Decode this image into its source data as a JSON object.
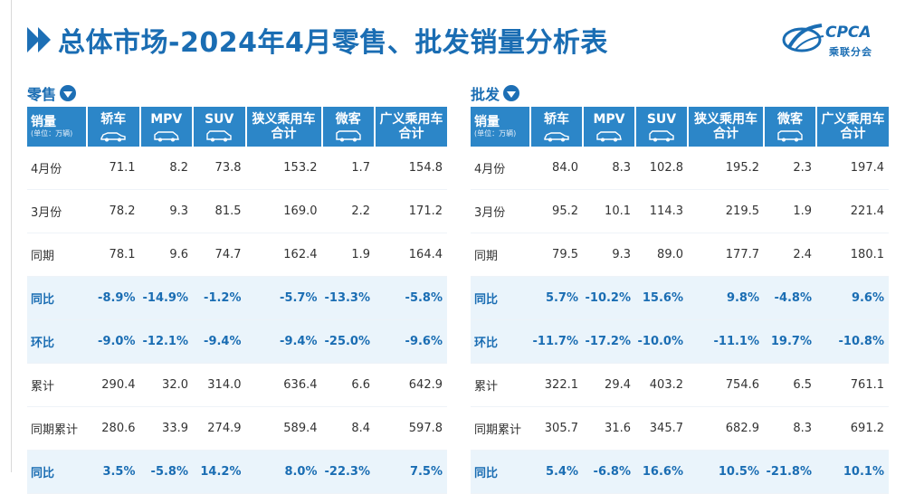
{
  "title": "总体市场-2024年4月零售、批发销量分析表",
  "logo": {
    "text": "CPCA",
    "sub": "乘联分会"
  },
  "header": {
    "col0_label": "销量",
    "col0_unit": "(单位：万辆)",
    "sedan": "轿车",
    "mpv": "MPV",
    "suv": "SUV",
    "narrow_line1": "狭义乘用车",
    "narrow_line2": "合计",
    "mini": "微客",
    "broad_line1": "广义乘用车",
    "broad_line2": "合计"
  },
  "retail": {
    "title": "零售",
    "rows": [
      {
        "label": "4月份",
        "sedan": "71.1",
        "mpv": "8.2",
        "suv": "73.8",
        "narrow": "153.2",
        "mini": "1.7",
        "broad": "154.8"
      },
      {
        "label": "3月份",
        "sedan": "78.2",
        "mpv": "9.3",
        "suv": "81.5",
        "narrow": "169.0",
        "mini": "2.2",
        "broad": "171.2"
      },
      {
        "label": "同期",
        "sedan": "78.1",
        "mpv": "9.6",
        "suv": "74.7",
        "narrow": "162.4",
        "mini": "1.9",
        "broad": "164.4"
      },
      {
        "label": "同比",
        "sedan": "-8.9%",
        "mpv": "-14.9%",
        "suv": "-1.2%",
        "narrow": "-5.7%",
        "mini": "-13.3%",
        "broad": "-5.8%"
      },
      {
        "label": "环比",
        "sedan": "-9.0%",
        "mpv": "-12.1%",
        "suv": "-9.4%",
        "narrow": "-9.4%",
        "mini": "-25.0%",
        "broad": "-9.6%"
      },
      {
        "label": "累计",
        "sedan": "290.4",
        "mpv": "32.0",
        "suv": "314.0",
        "narrow": "636.4",
        "mini": "6.6",
        "broad": "642.9"
      },
      {
        "label": "同期累计",
        "sedan": "280.6",
        "mpv": "33.9",
        "suv": "274.9",
        "narrow": "589.4",
        "mini": "8.4",
        "broad": "597.8"
      },
      {
        "label": "同比",
        "sedan": "3.5%",
        "mpv": "-5.8%",
        "suv": "14.2%",
        "narrow": "8.0%",
        "mini": "-22.3%",
        "broad": "7.5%"
      }
    ]
  },
  "wholesale": {
    "title": "批发",
    "rows": [
      {
        "label": "4月份",
        "sedan": "84.0",
        "mpv": "8.3",
        "suv": "102.8",
        "narrow": "195.2",
        "mini": "2.3",
        "broad": "197.4"
      },
      {
        "label": "3月份",
        "sedan": "95.2",
        "mpv": "10.1",
        "suv": "114.3",
        "narrow": "219.5",
        "mini": "1.9",
        "broad": "221.4"
      },
      {
        "label": "同期",
        "sedan": "79.5",
        "mpv": "9.3",
        "suv": "89.0",
        "narrow": "177.7",
        "mini": "2.4",
        "broad": "180.1"
      },
      {
        "label": "同比",
        "sedan": "5.7%",
        "mpv": "-10.2%",
        "suv": "15.6%",
        "narrow": "9.8%",
        "mini": "-4.8%",
        "broad": "9.6%"
      },
      {
        "label": "环比",
        "sedan": "-11.7%",
        "mpv": "-17.2%",
        "suv": "-10.0%",
        "narrow": "-11.1%",
        "mini": "19.7%",
        "broad": "-10.8%"
      },
      {
        "label": "累计",
        "sedan": "322.1",
        "mpv": "29.4",
        "suv": "403.2",
        "narrow": "754.6",
        "mini": "6.5",
        "broad": "761.1"
      },
      {
        "label": "同期累计",
        "sedan": "305.7",
        "mpv": "31.6",
        "suv": "345.7",
        "narrow": "682.9",
        "mini": "8.3",
        "broad": "691.2"
      },
      {
        "label": "同比",
        "sedan": "5.4%",
        "mpv": "-6.8%",
        "suv": "16.6%",
        "narrow": "10.5%",
        "mini": "-21.8%",
        "broad": "10.1%"
      }
    ]
  },
  "colors": {
    "primary": "#1a6db3",
    "header_bg": "#2c86c8",
    "highlight_row": "#eaf4fb"
  }
}
